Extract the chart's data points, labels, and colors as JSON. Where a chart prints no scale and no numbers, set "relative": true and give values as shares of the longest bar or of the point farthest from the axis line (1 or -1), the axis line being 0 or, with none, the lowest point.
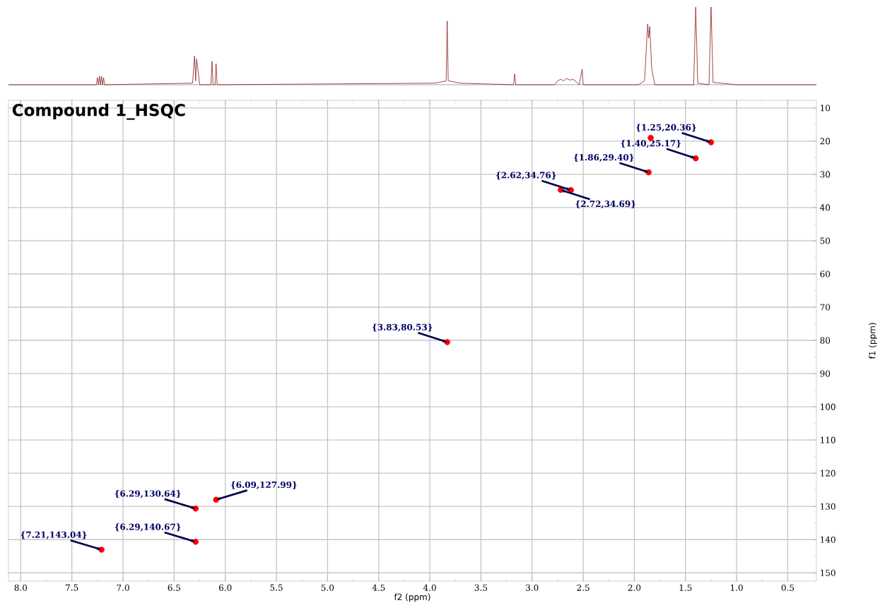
{
  "chart_data": [
    {
      "type": "line",
      "relative": true,
      "color": "#8b1a1a",
      "xlim": [
        8.12,
        0.22
      ],
      "x": [
        8.12,
        7.26,
        7.25,
        7.24,
        7.23,
        7.22,
        7.21,
        7.2,
        7.19,
        7.18,
        6.32,
        6.3,
        6.29,
        6.28,
        6.25,
        6.14,
        6.13,
        6.12,
        6.1,
        6.09,
        6.08,
        3.95,
        3.84,
        3.83,
        3.82,
        3.7,
        3.18,
        3.17,
        3.16,
        2.78,
        2.75,
        2.72,
        2.69,
        2.66,
        2.63,
        2.6,
        2.57,
        2.54,
        2.51,
        2.5,
        1.96,
        1.9,
        1.87,
        1.86,
        1.85,
        1.83,
        1.8,
        1.42,
        1.4,
        1.38,
        1.27,
        1.25,
        1.23,
        1.0,
        0.22
      ],
      "values": [
        0,
        0,
        0.09,
        0,
        0.11,
        0,
        0.11,
        0,
        0.09,
        0,
        0.02,
        0.37,
        0.05,
        0.33,
        0,
        0,
        0.3,
        0,
        0,
        0.27,
        0,
        0.02,
        0.05,
        0.82,
        0.05,
        0.02,
        0,
        0.14,
        0,
        0,
        0.05,
        0.07,
        0.05,
        0.08,
        0.06,
        0.07,
        0.04,
        0,
        0.2,
        0,
        0,
        0.05,
        0.78,
        0.6,
        0.75,
        0.2,
        0,
        0,
        1.0,
        0.02,
        0,
        1.0,
        0.03,
        0,
        0
      ]
    },
    {
      "type": "scatter",
      "title": "Compound 1_HSQC",
      "xlabel": "f2 (ppm)",
      "ylabel": "f1 (ppm)",
      "color": "#ff0000",
      "marker": "circle",
      "grid": true,
      "xlim": [
        8.12,
        0.22
      ],
      "ylim": [
        152.5,
        7.7
      ],
      "xticks": [
        {
          "value": 8,
          "label": "8.0"
        },
        {
          "value": 7.5,
          "label": "7.5"
        },
        {
          "value": 7,
          "label": "7.0"
        },
        {
          "value": 6.5,
          "label": "6.5"
        },
        {
          "value": 6,
          "label": "6.0"
        },
        {
          "value": 5.5,
          "label": "5.5"
        },
        {
          "value": 5,
          "label": "5.0"
        },
        {
          "value": 4.5,
          "label": "4.5"
        },
        {
          "value": 4,
          "label": "4.0"
        },
        {
          "value": 3.5,
          "label": "3.5"
        },
        {
          "value": 3,
          "label": "3.0"
        },
        {
          "value": 2.5,
          "label": "2.5"
        },
        {
          "value": 2,
          "label": "2.0"
        },
        {
          "value": 1.5,
          "label": "1.5"
        },
        {
          "value": 1,
          "label": "1.0"
        },
        {
          "value": 0.5,
          "label": "0.5"
        }
      ],
      "yticks": [
        10,
        20,
        30,
        40,
        50,
        60,
        70,
        80,
        90,
        100,
        110,
        120,
        130,
        140,
        150
      ],
      "x": [
        1.25,
        1.4,
        1.84,
        1.86,
        2.62,
        2.72,
        3.83,
        6.09,
        6.29,
        6.29,
        7.21
      ],
      "values": [
        20.36,
        25.17,
        19.0,
        29.4,
        34.76,
        34.69,
        80.53,
        127.99,
        130.64,
        140.67,
        143.04
      ],
      "annotations": [
        {
          "text": "{1.25,20.36}",
          "x": 1.25,
          "y": 20.36
        },
        {
          "text": "{1.40,25.17}",
          "x": 1.4,
          "y": 25.17
        },
        {
          "text": "{1.86,29.40}",
          "x": 1.86,
          "y": 29.4
        },
        {
          "text": "{2.62,34.76}",
          "x": 2.62,
          "y": 34.76
        },
        {
          "text": "{2.72,34.69}",
          "x": 2.72,
          "y": 34.69
        },
        {
          "text": "{3.83,80.53}",
          "x": 3.83,
          "y": 80.53
        },
        {
          "text": "{6.09,127.99}",
          "x": 6.09,
          "y": 127.99
        },
        {
          "text": "{6.29,130.64}",
          "x": 6.29,
          "y": 130.64
        },
        {
          "text": "{6.29,140.67}",
          "x": 6.29,
          "y": 140.67
        },
        {
          "text": "{7.21,143.04}",
          "x": 7.21,
          "y": 143.04
        }
      ]
    }
  ]
}
